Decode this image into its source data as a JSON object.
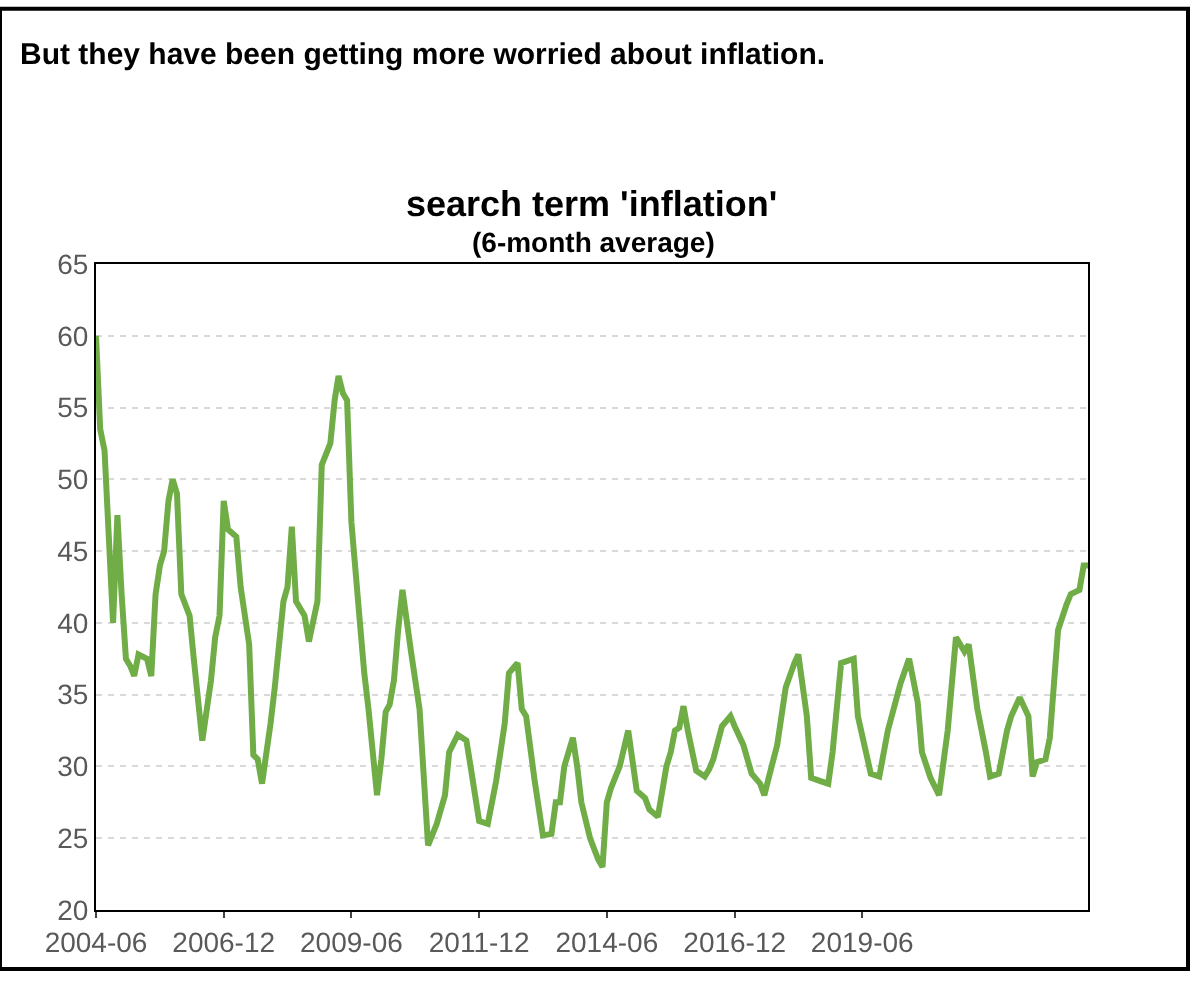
{
  "chart_data": {
    "type": "line",
    "title": "search term 'inflation'",
    "subtitle": "(6-month average)",
    "annotations": [
      "But they have been getting more worried about inflation."
    ],
    "x": [
      "2004-06",
      "2004-07",
      "2004-08",
      "2004-10",
      "2004-11",
      "2004-12",
      "2005-01",
      "2005-02",
      "2005-03",
      "2005-04",
      "2005-06",
      "2005-07",
      "2005-08",
      "2005-09",
      "2005-10",
      "2005-11",
      "2005-12",
      "2006-01",
      "2006-02",
      "2006-04",
      "2006-05",
      "2006-07",
      "2006-09",
      "2006-10",
      "2006-11",
      "2006-12",
      "2007-01",
      "2007-03",
      "2007-04",
      "2007-06",
      "2007-07",
      "2007-08",
      "2007-09",
      "2007-11",
      "2007-12",
      "2008-01",
      "2008-02",
      "2008-03",
      "2008-04",
      "2008-05",
      "2008-07",
      "2008-08",
      "2008-10",
      "2008-11",
      "2009-01",
      "2009-02",
      "2009-03",
      "2009-04",
      "2009-05",
      "2009-06",
      "2009-08",
      "2009-09",
      "2009-10",
      "2009-12",
      "2010-01",
      "2010-02",
      "2010-03",
      "2010-04",
      "2010-05",
      "2010-06",
      "2010-08",
      "2010-10",
      "2010-12",
      "2011-02",
      "2011-04",
      "2011-05",
      "2011-07",
      "2011-09",
      "2011-10",
      "2011-12",
      "2012-02",
      "2012-04",
      "2012-06",
      "2012-07",
      "2012-09",
      "2012-10",
      "2012-11",
      "2013-01",
      "2013-03",
      "2013-05",
      "2013-06",
      "2013-07",
      "2013-08",
      "2013-10",
      "2013-11",
      "2013-12",
      "2014-02",
      "2014-04",
      "2014-05",
      "2014-06",
      "2014-07",
      "2014-09",
      "2014-11",
      "2015-01",
      "2015-03",
      "2015-04",
      "2015-06",
      "2015-08",
      "2015-09",
      "2015-10",
      "2015-11",
      "2015-12",
      "2016-01",
      "2016-03",
      "2016-05",
      "2016-06",
      "2016-07",
      "2016-09",
      "2016-11",
      "2016-12",
      "2017-02",
      "2017-04",
      "2017-06",
      "2017-07",
      "2017-08",
      "2017-10",
      "2017-12",
      "2018-02",
      "2018-03",
      "2018-05",
      "2018-06",
      "2018-08",
      "2018-10",
      "2018-11",
      "2019-01",
      "2019-04",
      "2019-05",
      "2019-08",
      "2019-10",
      "2019-12",
      "2020-03",
      "2020-05",
      "2020-07",
      "2020-08",
      "2020-10",
      "2020-12",
      "2021-02",
      "2021-04",
      "2021-06",
      "2021-07",
      "2021-09",
      "2021-11",
      "2021-12",
      "2022-02",
      "2022-04",
      "2022-05",
      "2022-07",
      "2022-09",
      "2022-10",
      "2022-11",
      "2023-01",
      "2023-02",
      "2023-04",
      "2023-06",
      "2023-07",
      "2023-09",
      "2023-10",
      "2023-11"
    ],
    "series": [
      {
        "color": "#70ad47",
        "values": [
          60,
          53.5,
          52,
          40,
          47.5,
          42,
          37.5,
          37,
          36.3,
          37.8,
          37.5,
          36.3,
          42,
          44,
          45,
          48.5,
          50,
          49,
          42,
          40.5,
          37.5,
          31.8,
          36,
          39,
          40.5,
          48.5,
          46.5,
          46,
          42.5,
          38.5,
          30.8,
          30.5,
          28.8,
          33,
          35.5,
          38.5,
          41.5,
          42.5,
          46.7,
          41.5,
          40.5,
          38.7,
          41.5,
          51,
          52.5,
          55.5,
          57.2,
          56,
          55.5,
          47,
          40,
          36.5,
          34,
          28,
          30.5,
          33.8,
          34.3,
          36,
          39.5,
          42.3,
          38,
          34,
          24.5,
          26,
          28,
          31,
          32.2,
          31.8,
          30,
          26.2,
          26,
          29,
          33,
          36.5,
          37.2,
          34,
          33.5,
          29,
          25.2,
          25.3,
          27.5,
          27.5,
          30,
          32,
          30,
          27.5,
          25,
          23.5,
          23,
          27.5,
          28.5,
          30,
          32.5,
          28.3,
          27.8,
          27,
          26.5,
          30,
          31,
          32.5,
          32.7,
          34.2,
          32.5,
          29.7,
          29.3,
          29.8,
          30.5,
          32.8,
          33.5,
          32.8,
          31.5,
          29.5,
          28.8,
          28,
          29.2,
          31.5,
          35.5,
          37.2,
          37.8,
          33.5,
          29.2,
          29,
          28.8,
          31,
          37.2,
          37.5,
          33.5,
          29.5,
          29.3,
          32.5,
          35.8,
          37.5,
          34.5,
          31,
          29.2,
          28,
          32.5,
          39,
          38,
          38.5,
          34,
          31,
          29.3,
          29.5,
          32.5,
          33.5,
          34.8,
          33.5,
          29.3,
          30.3,
          30.5,
          32,
          39.5,
          41.3,
          42,
          42.3,
          44,
          44
        ]
      }
    ],
    "xlim": [
      "2004-06",
      "2023-11"
    ],
    "xticks": [
      "2004-06",
      "2006-12",
      "2009-06",
      "2011-12",
      "2014-06",
      "2016-12",
      "2019-06"
    ],
    "ylim": [
      20,
      65
    ],
    "yticks": [
      20,
      25,
      30,
      35,
      40,
      45,
      50,
      55,
      60,
      65
    ],
    "grid": "y",
    "marker": "none",
    "line_style": "solid"
  }
}
